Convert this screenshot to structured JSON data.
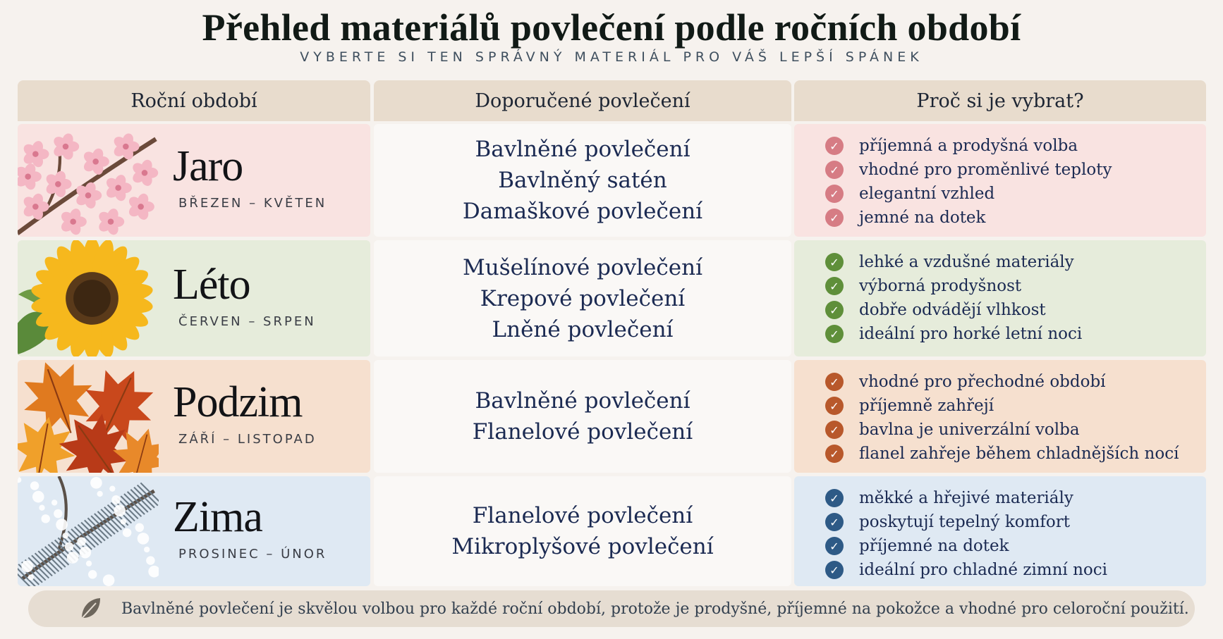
{
  "title": "Přehled materiálů povlečení podle ročních období",
  "subtitle": "VYBERTE SI TEN SPRÁVNÝ MATERIÁL PRO VÁŠ LEPŠÍ SPÁNEK",
  "headers": {
    "season": "Roční období",
    "materials": "Doporučené povlečení",
    "why": "Proč si je vybrat?"
  },
  "rows": [
    {
      "season": "Jaro",
      "months": "BŘEZEN – KVĚTEN",
      "illustration": "cherry-blossom-icon",
      "bg": "#f9e3e1",
      "check_color": "#d67c84",
      "materials": [
        "Bavlněné povlečení",
        "Bavlněný satén",
        "Damaškové povlečení"
      ],
      "reasons": [
        "příjemná a prodyšná volba",
        "vhodné pro proměnlivé teploty",
        "elegantní vzhled",
        "jemné na dotek"
      ]
    },
    {
      "season": "Léto",
      "months": "ČERVEN – SRPEN",
      "illustration": "sunflower-icon",
      "bg": "#e6ecdb",
      "check_color": "#5f8f3a",
      "materials": [
        "Mušelínové povlečení",
        "Krepové povlečení",
        "Lněné povlečení"
      ],
      "reasons": [
        "lehké a vzdušné materiály",
        "výborná prodyšnost",
        "dobře odvádějí vlhkost",
        "ideální pro horké letní noci"
      ]
    },
    {
      "season": "Podzim",
      "months": "ZÁŘÍ – LISTOPAD",
      "illustration": "autumn-leaves-icon",
      "bg": "#f6e0cf",
      "check_color": "#b8582b",
      "materials": [
        "Bavlněné povlečení",
        "Flanelové povlečení"
      ],
      "reasons": [
        "vhodné pro přechodné období",
        "příjemně zahřejí",
        "bavlna je univerzální volba",
        "flanel zahřeje během chladnějších nocí"
      ]
    },
    {
      "season": "Zima",
      "months": "PROSINEC – ÚNOR",
      "illustration": "snowy-branch-icon",
      "bg": "#dfe9f3",
      "check_color": "#2e5a86",
      "materials": [
        "Flanelové povlečení",
        "Mikroplyšové povlečení"
      ],
      "reasons": [
        "měkké a hřejivé materiály",
        "poskytují tepelný komfort",
        "příjemné na dotek",
        "ideální pro chladné zimní noci"
      ]
    }
  ],
  "footer": {
    "icon": "leaf-icon",
    "text": "Bavlněné povlečení je skvělou volbou pro každé roční období, protože je prodyšné, příjemné na pokožce a vhodné pro celoroční použití."
  }
}
